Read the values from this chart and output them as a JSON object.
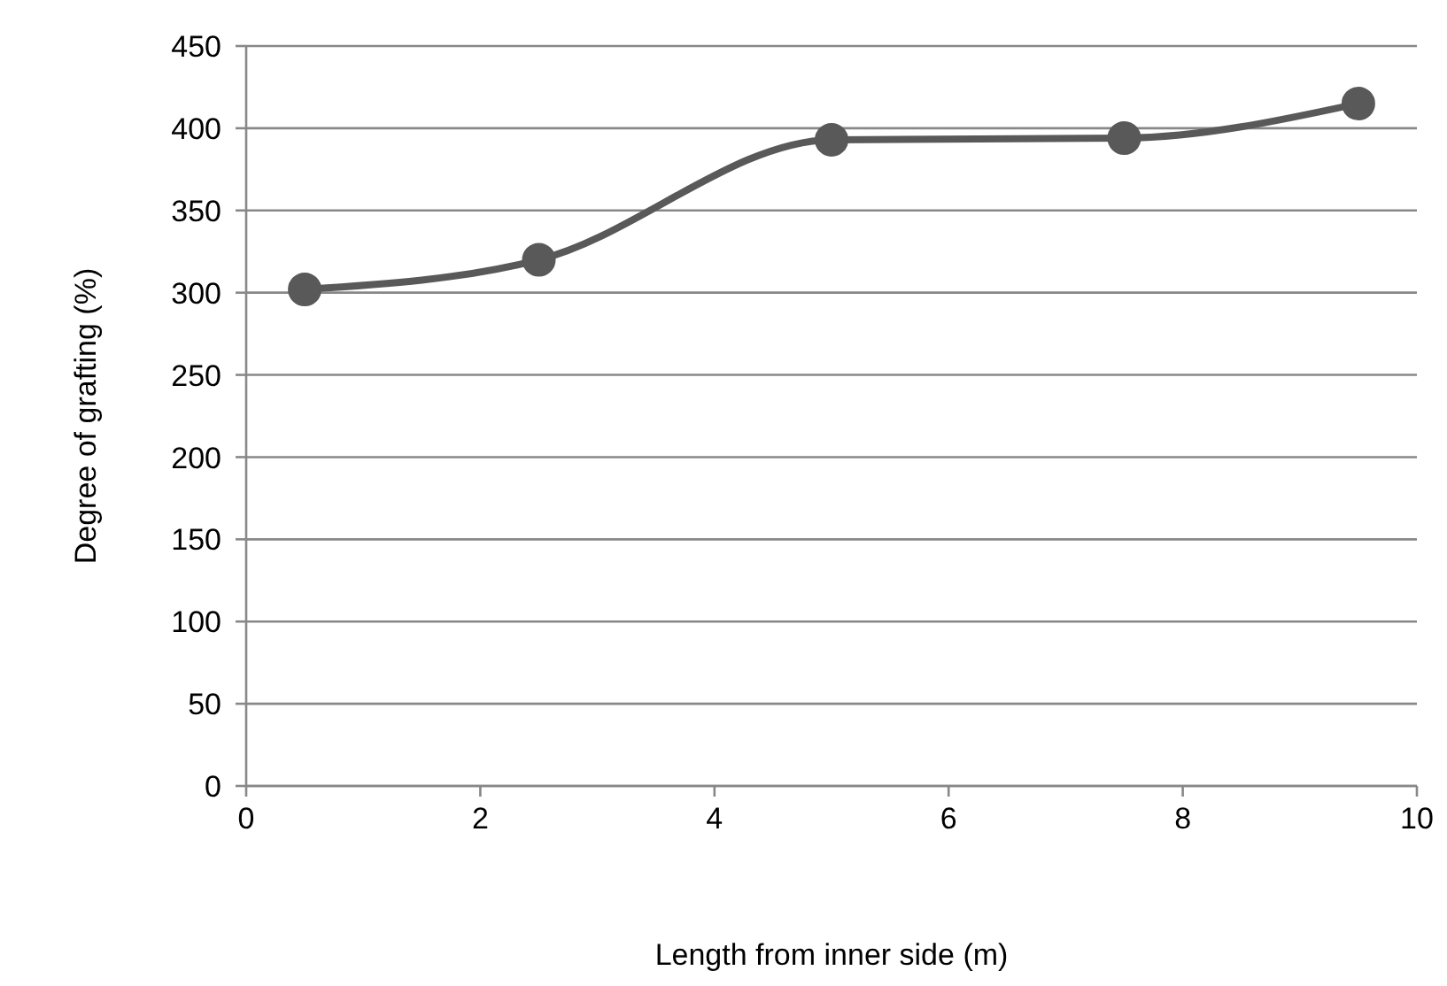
{
  "chart_data": {
    "type": "line",
    "xlabel": "Length from inner side (m)",
    "ylabel": "Degree of grafting (%)",
    "x": [
      0.5,
      2.5,
      5,
      7.5,
      9.5
    ],
    "series": [
      {
        "color": "#595959",
        "values": [
          302,
          320,
          393,
          394,
          415
        ]
      }
    ],
    "xlim": [
      0,
      10
    ],
    "xticks": [
      0,
      2,
      4,
      6,
      8,
      10
    ],
    "ylim": [
      0,
      450
    ],
    "yticks": [
      0,
      50,
      100,
      150,
      200,
      250,
      300,
      350,
      400,
      450
    ],
    "grid": "y",
    "marker": "circle",
    "line_style": "solid",
    "legend": false
  }
}
